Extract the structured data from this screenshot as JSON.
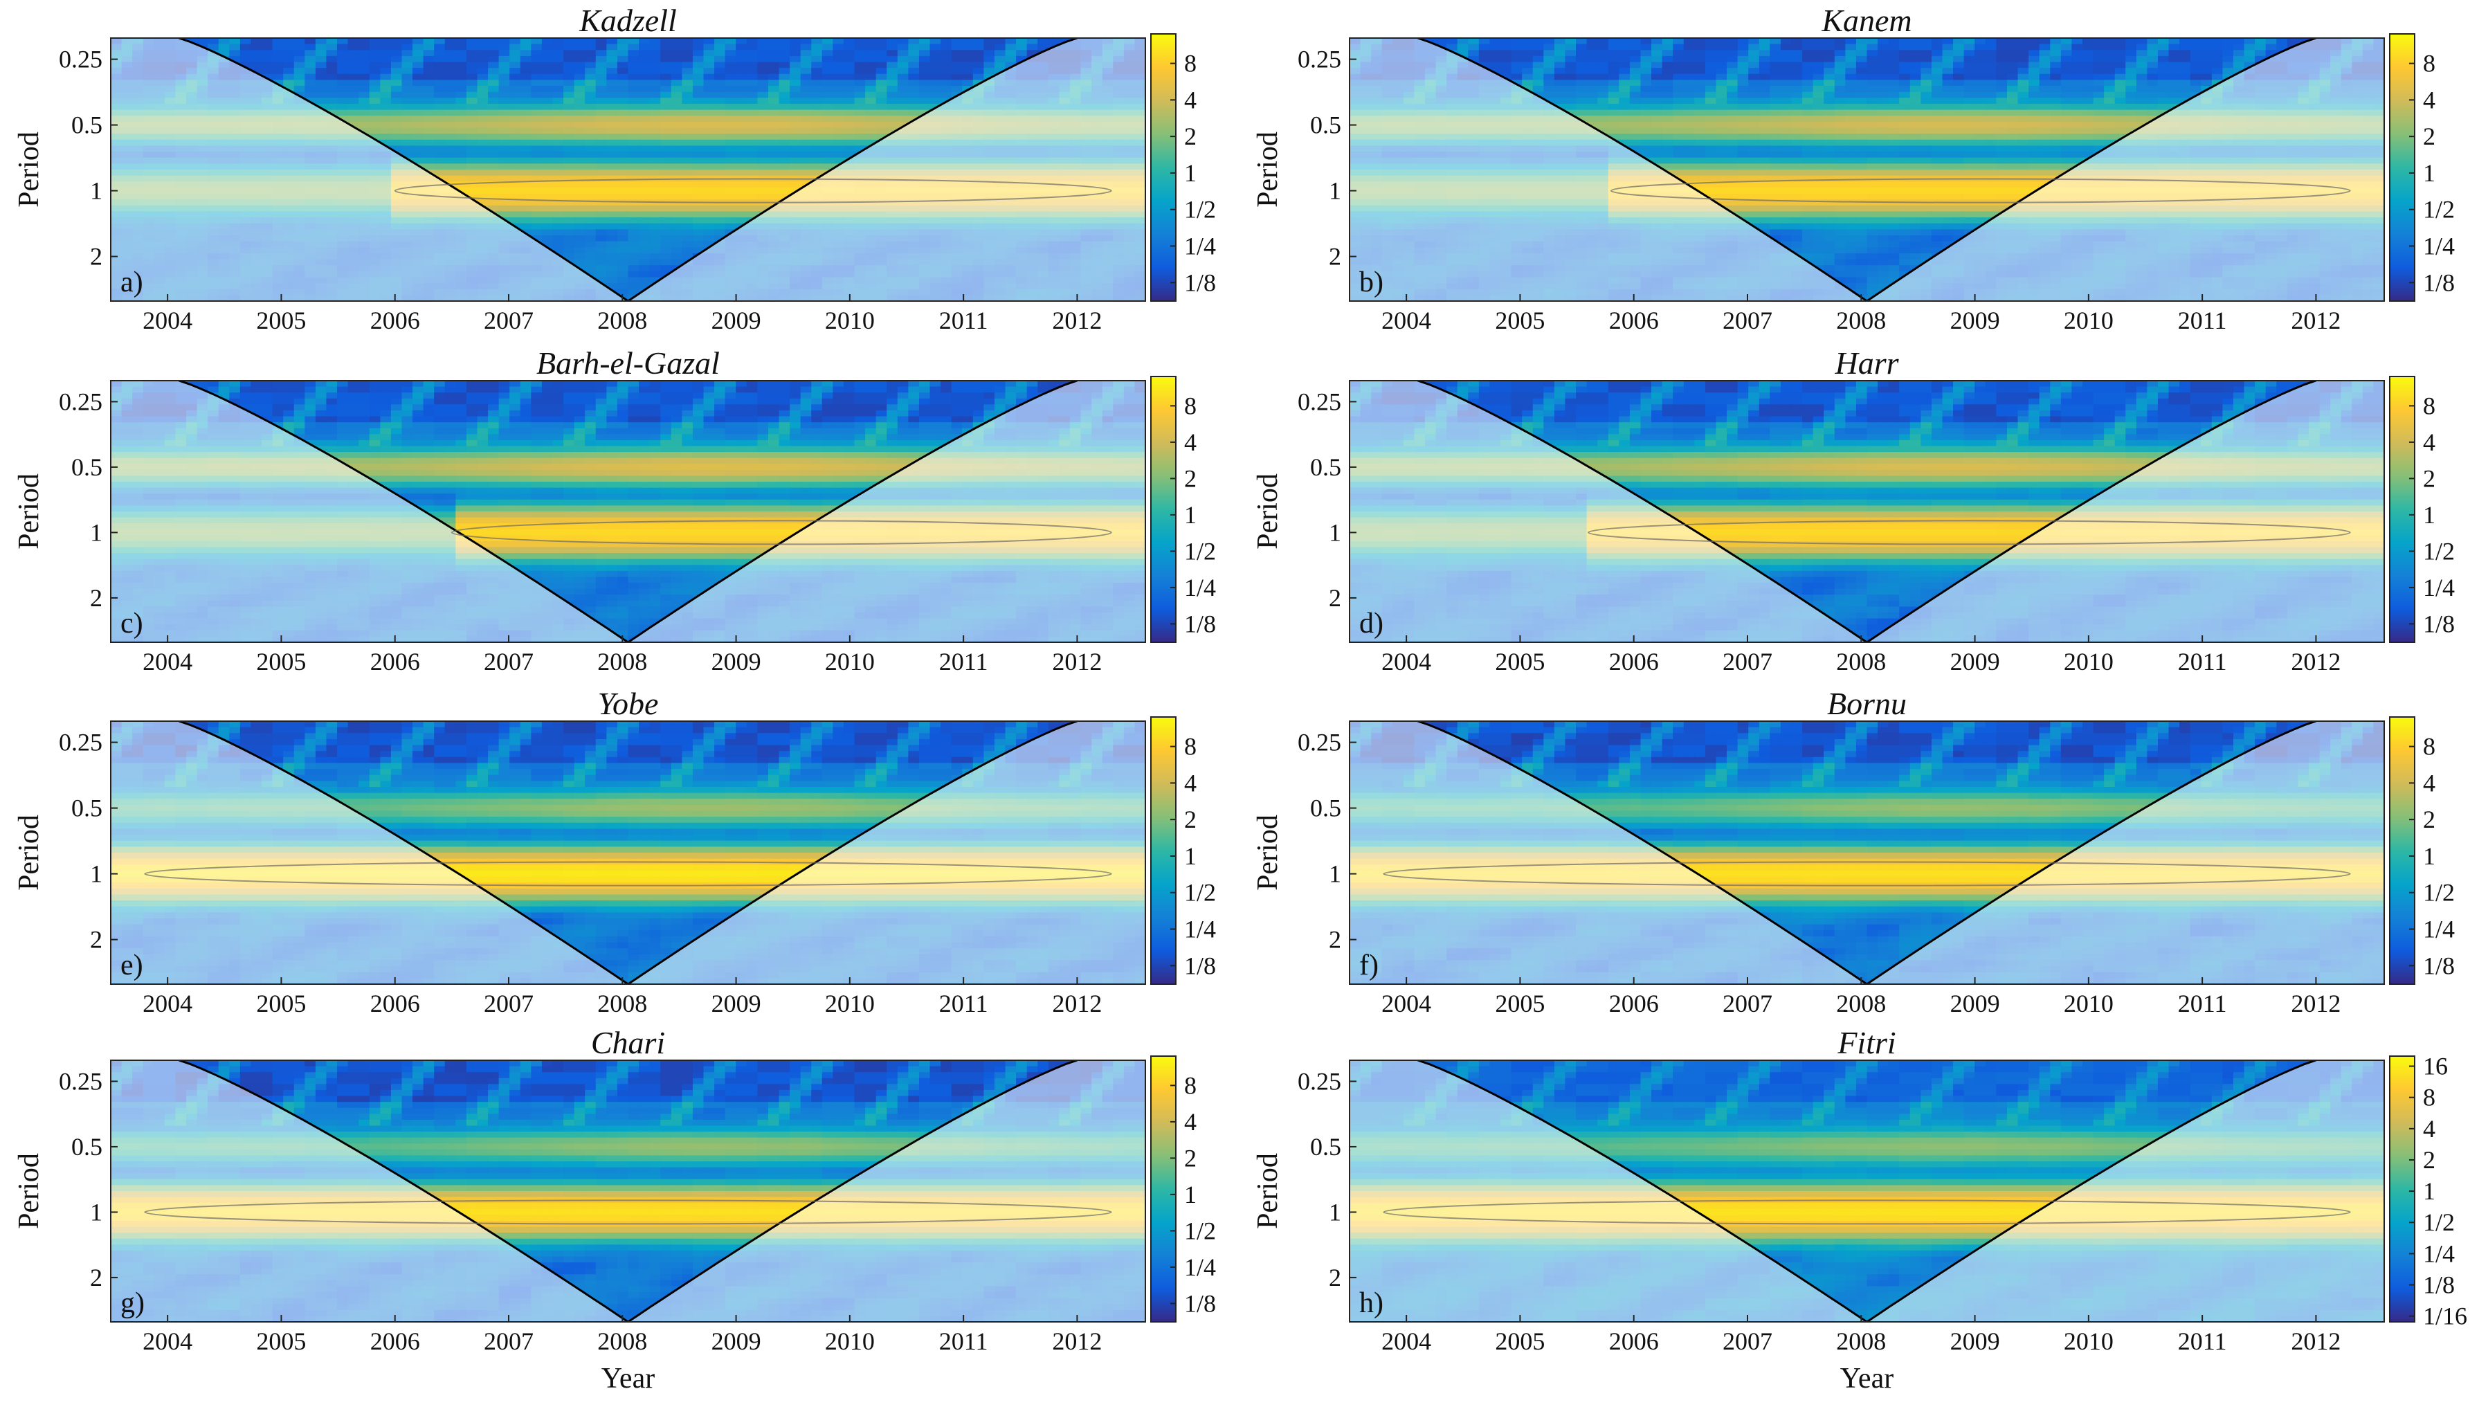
{
  "figure": {
    "x_axis_label": "Year",
    "y_axis_label": "Period",
    "colormap": [
      "#352a87",
      "#0f5cdd",
      "#1481d6",
      "#06a4ca",
      "#2eb7a4",
      "#87bf77",
      "#d1bb59",
      "#fec832",
      "#f9fb0e"
    ],
    "coi_color": "#000000",
    "outside_coi_wash": "#ffffff"
  },
  "chart_data": [
    {
      "type": "heatmap",
      "panel": "a)",
      "title": "Kadzell",
      "xlabel": "",
      "ylabel": "Period",
      "xlim": [
        2003.5,
        2012.6
      ],
      "x_ticks": [
        "2004",
        "2005",
        "2006",
        "2007",
        "2008",
        "2009",
        "2010",
        "2011",
        "2012"
      ],
      "y_ticks": [
        "0.25",
        "0.5",
        "1",
        "2"
      ],
      "ylim_period": [
        0.2,
        3.2
      ],
      "colorbar_ticks": [
        "8",
        "4",
        "2",
        "1",
        "1/2",
        "1/4",
        "1/8"
      ],
      "colorbar_range": [
        0.088,
        14
      ],
      "annual_band_start": 2006.0,
      "annual_power": 9,
      "semiannual_power": 4.2,
      "highfreq_power": 0.4
    },
    {
      "type": "heatmap",
      "panel": "b)",
      "title": "Kanem",
      "xlabel": "",
      "ylabel": "Period",
      "xlim": [
        2003.5,
        2012.6
      ],
      "x_ticks": [
        "2004",
        "2005",
        "2006",
        "2007",
        "2008",
        "2009",
        "2010",
        "2011",
        "2012"
      ],
      "y_ticks": [
        "0.25",
        "0.5",
        "1",
        "2"
      ],
      "ylim_period": [
        0.2,
        3.2
      ],
      "colorbar_ticks": [
        "8",
        "4",
        "2",
        "1",
        "1/2",
        "1/4",
        "1/8"
      ],
      "colorbar_range": [
        0.088,
        14
      ],
      "annual_band_start": 2005.8,
      "annual_power": 9,
      "semiannual_power": 4.0,
      "highfreq_power": 0.4
    },
    {
      "type": "heatmap",
      "panel": "c)",
      "title": "Barh-el-Gazal",
      "xlabel": "",
      "ylabel": "Period",
      "xlim": [
        2003.5,
        2012.6
      ],
      "x_ticks": [
        "2004",
        "2005",
        "2006",
        "2007",
        "2008",
        "2009",
        "2010",
        "2011",
        "2012"
      ],
      "y_ticks": [
        "0.25",
        "0.5",
        "1",
        "2"
      ],
      "ylim_period": [
        0.2,
        3.2
      ],
      "colorbar_ticks": [
        "8",
        "4",
        "2",
        "1",
        "1/2",
        "1/4",
        "1/8"
      ],
      "colorbar_range": [
        0.088,
        14
      ],
      "annual_band_start": 2006.5,
      "annual_power": 9,
      "semiannual_power": 4.5,
      "highfreq_power": 0.4
    },
    {
      "type": "heatmap",
      "panel": "d)",
      "title": "Harr",
      "xlabel": "",
      "ylabel": "Period",
      "xlim": [
        2003.5,
        2012.6
      ],
      "x_ticks": [
        "2004",
        "2005",
        "2006",
        "2007",
        "2008",
        "2009",
        "2010",
        "2011",
        "2012"
      ],
      "y_ticks": [
        "0.25",
        "0.5",
        "1",
        "2"
      ],
      "ylim_period": [
        0.2,
        3.2
      ],
      "colorbar_ticks": [
        "8",
        "4",
        "2",
        "1",
        "1/2",
        "1/4",
        "1/8"
      ],
      "colorbar_range": [
        0.088,
        14
      ],
      "annual_band_start": 2005.6,
      "annual_power": 9,
      "semiannual_power": 4.2,
      "highfreq_power": 0.4
    },
    {
      "type": "heatmap",
      "panel": "e)",
      "title": "Yobe",
      "xlabel": "",
      "ylabel": "Period",
      "xlim": [
        2003.5,
        2012.6
      ],
      "x_ticks": [
        "2004",
        "2005",
        "2006",
        "2007",
        "2008",
        "2009",
        "2010",
        "2011",
        "2012"
      ],
      "y_ticks": [
        "0.25",
        "0.5",
        "1",
        "2"
      ],
      "ylim_period": [
        0.2,
        3.2
      ],
      "colorbar_ticks": [
        "8",
        "4",
        "2",
        "1",
        "1/2",
        "1/4",
        "1/8"
      ],
      "colorbar_range": [
        0.088,
        14
      ],
      "annual_band_start": 2003.5,
      "annual_power": 11,
      "semiannual_power": 2.4,
      "highfreq_power": 0.35
    },
    {
      "type": "heatmap",
      "panel": "f)",
      "title": "Bornu",
      "xlabel": "",
      "ylabel": "Period",
      "xlim": [
        2003.5,
        2012.6
      ],
      "x_ticks": [
        "2004",
        "2005",
        "2006",
        "2007",
        "2008",
        "2009",
        "2010",
        "2011",
        "2012"
      ],
      "y_ticks": [
        "0.25",
        "0.5",
        "1",
        "2"
      ],
      "ylim_period": [
        0.2,
        3.2
      ],
      "colorbar_ticks": [
        "8",
        "4",
        "2",
        "1",
        "1/2",
        "1/4",
        "1/8"
      ],
      "colorbar_range": [
        0.088,
        14
      ],
      "annual_band_start": 2003.5,
      "annual_power": 10,
      "semiannual_power": 2.2,
      "highfreq_power": 0.35
    },
    {
      "type": "heatmap",
      "panel": "g)",
      "title": "Chari",
      "xlabel": "Year",
      "ylabel": "Period",
      "xlim": [
        2003.5,
        2012.6
      ],
      "x_ticks": [
        "2004",
        "2005",
        "2006",
        "2007",
        "2008",
        "2009",
        "2010",
        "2011",
        "2012"
      ],
      "y_ticks": [
        "0.25",
        "0.5",
        "1",
        "2"
      ],
      "ylim_period": [
        0.2,
        3.2
      ],
      "colorbar_ticks": [
        "8",
        "4",
        "2",
        "1",
        "1/2",
        "1/4",
        "1/8"
      ],
      "colorbar_range": [
        0.088,
        14
      ],
      "annual_band_start": 2003.5,
      "annual_power": 10,
      "semiannual_power": 2.2,
      "highfreq_power": 0.35
    },
    {
      "type": "heatmap",
      "panel": "h)",
      "title": "Fitri",
      "xlabel": "Year",
      "ylabel": "Period",
      "xlim": [
        2003.5,
        2012.6
      ],
      "x_ticks": [
        "2004",
        "2005",
        "2006",
        "2007",
        "2008",
        "2009",
        "2010",
        "2011",
        "2012"
      ],
      "y_ticks": [
        "0.25",
        "0.5",
        "1",
        "2"
      ],
      "ylim_period": [
        0.2,
        3.2
      ],
      "colorbar_ticks": [
        "16",
        "8",
        "4",
        "2",
        "1",
        "1/2",
        "1/4",
        "1/8",
        "1/16"
      ],
      "colorbar_range": [
        0.055,
        20
      ],
      "annual_band_start": 2003.5,
      "annual_power": 14,
      "semiannual_power": 2.2,
      "highfreq_power": 0.3
    }
  ]
}
